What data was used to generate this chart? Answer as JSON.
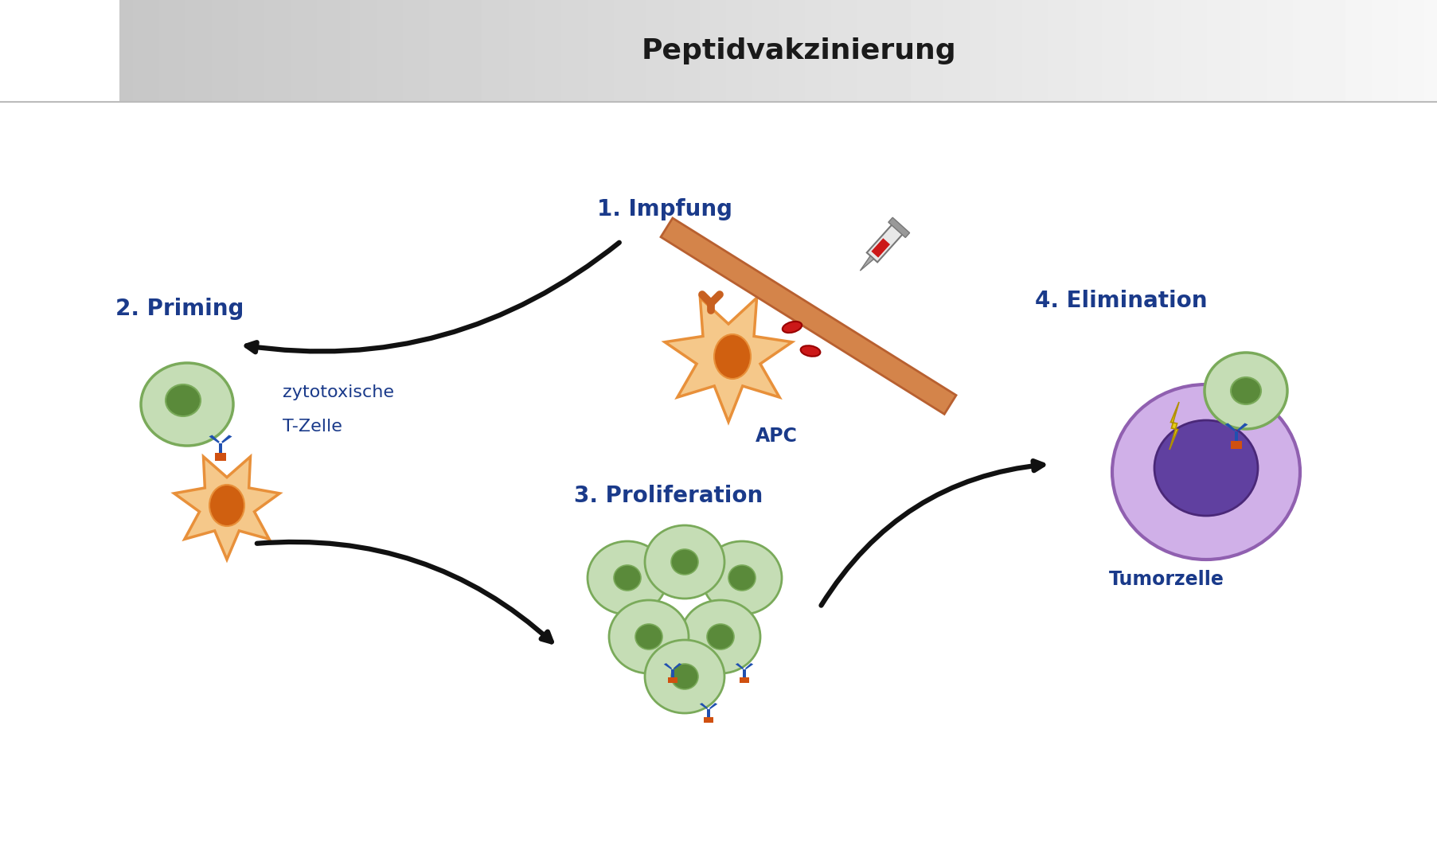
{
  "title": "Peptidvakzinierung",
  "title_fontsize": 26,
  "title_color": "#1a1a1a",
  "label_color": "#1a3a8a",
  "label_fontsize": 20,
  "sub_label_fontsize": 17,
  "bg_color": "#ffffff",
  "cell_green": "#7aaa5a",
  "cell_green_light": "#c5ddb5",
  "cell_orange": "#e8903a",
  "cell_orange_light": "#f5c88a",
  "cell_purple": "#9060b0",
  "cell_purple_light": "#d0b0e8",
  "cell_nucleus_green": "#5a8a3a",
  "cell_nucleus_orange": "#d06010",
  "cell_nucleus_purple": "#6040a0",
  "cell_red": "#cc1818",
  "receptor_blue": "#2050b0",
  "receptor_orange": "#d05010",
  "lightning_color": "#e8d018",
  "skin_color": "#d4844a",
  "skin_edge": "#b86030",
  "arrow_color": "#111111",
  "stage1_label": "1. Impfung",
  "stage2_label": "2. Priming",
  "stage3_label": "3. Proliferation",
  "stage4_label": "4. Elimination",
  "apc_label": "APC",
  "tcell_label1": "zytotoxische",
  "tcell_label2": "T-Zelle",
  "tumor_label": "Tumorzelle"
}
